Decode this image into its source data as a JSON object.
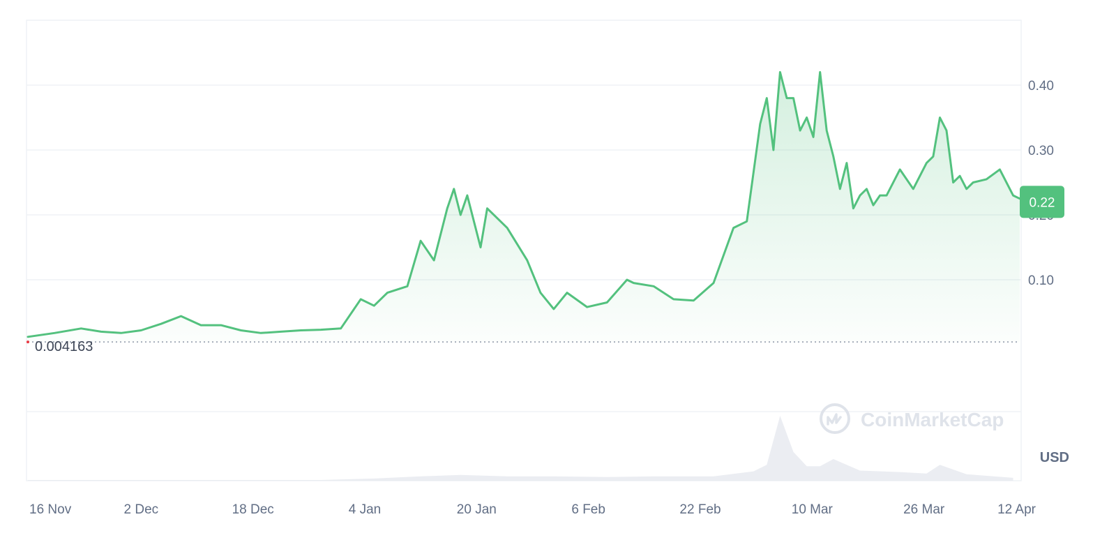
{
  "chart_data": {
    "type": "area",
    "x_label": "",
    "y_label": "",
    "unit": "USD",
    "watermark": "CoinMarketCap",
    "x_ticks": [
      "16 Nov",
      "2 Dec",
      "18 Dec",
      "4 Jan",
      "20 Jan",
      "6 Feb",
      "22 Feb",
      "10 Mar",
      "26 Mar",
      "12 Apr"
    ],
    "y_ticks": [
      "0.10",
      "0.20",
      "0.30",
      "0.40"
    ],
    "y_range": [
      -0.1,
      0.5
    ],
    "baseline_value": 0.004163,
    "baseline_label": "0.004163",
    "current_value": 0.22,
    "current_label": "0.22",
    "grid": true,
    "line_color": "#53c17e",
    "badge_color": "#53c17e",
    "series": [
      {
        "x": [
          "2023-11-16",
          "2023-11-20",
          "2023-11-24",
          "2023-11-27",
          "2023-11-30",
          "2023-12-03",
          "2023-12-06",
          "2023-12-09",
          "2023-12-12",
          "2023-12-15",
          "2023-12-18",
          "2023-12-21",
          "2023-12-24",
          "2023-12-27",
          "2023-12-30",
          "2024-01-02",
          "2024-01-05",
          "2024-01-07",
          "2024-01-09",
          "2024-01-12",
          "2024-01-14",
          "2024-01-16",
          "2024-01-18",
          "2024-01-19",
          "2024-01-20",
          "2024-01-21",
          "2024-01-23",
          "2024-01-24",
          "2024-01-27",
          "2024-01-30",
          "2024-02-01",
          "2024-02-03",
          "2024-02-05",
          "2024-02-08",
          "2024-02-11",
          "2024-02-14",
          "2024-02-15",
          "2024-02-18",
          "2024-02-21",
          "2024-02-24",
          "2024-02-27",
          "2024-03-01",
          "2024-03-03",
          "2024-03-05",
          "2024-03-06",
          "2024-03-07",
          "2024-03-08",
          "2024-03-09",
          "2024-03-10",
          "2024-03-11",
          "2024-03-12",
          "2024-03-13",
          "2024-03-14",
          "2024-03-15",
          "2024-03-16",
          "2024-03-17",
          "2024-03-18",
          "2024-03-19",
          "2024-03-20",
          "2024-03-21",
          "2024-03-22",
          "2024-03-23",
          "2024-03-24",
          "2024-03-26",
          "2024-03-28",
          "2024-03-30",
          "2024-03-31",
          "2024-04-01",
          "2024-04-02",
          "2024-04-03",
          "2024-04-04",
          "2024-04-05",
          "2024-04-06",
          "2024-04-08",
          "2024-04-10",
          "2024-04-12",
          "2024-04-13"
        ],
        "y": [
          0.012,
          0.018,
          0.025,
          0.02,
          0.018,
          0.022,
          0.032,
          0.044,
          0.03,
          0.03,
          0.022,
          0.018,
          0.02,
          0.022,
          0.023,
          0.025,
          0.07,
          0.06,
          0.08,
          0.09,
          0.16,
          0.13,
          0.21,
          0.24,
          0.2,
          0.23,
          0.15,
          0.21,
          0.18,
          0.13,
          0.08,
          0.055,
          0.08,
          0.058,
          0.065,
          0.1,
          0.095,
          0.09,
          0.07,
          0.068,
          0.095,
          0.18,
          0.19,
          0.34,
          0.38,
          0.3,
          0.42,
          0.38,
          0.38,
          0.33,
          0.35,
          0.32,
          0.42,
          0.33,
          0.29,
          0.24,
          0.28,
          0.21,
          0.23,
          0.24,
          0.215,
          0.23,
          0.23,
          0.27,
          0.24,
          0.28,
          0.29,
          0.35,
          0.33,
          0.25,
          0.26,
          0.24,
          0.25,
          0.255,
          0.27,
          0.23,
          0.225
        ]
      }
    ],
    "volume": {
      "x": [
        "2023-11-16",
        "2023-11-24",
        "2023-12-03",
        "2023-12-12",
        "2023-12-21",
        "2023-12-30",
        "2024-01-07",
        "2024-01-14",
        "2024-01-20",
        "2024-01-27",
        "2024-02-03",
        "2024-02-11",
        "2024-02-18",
        "2024-02-27",
        "2024-03-04",
        "2024-03-06",
        "2024-03-08",
        "2024-03-10",
        "2024-03-12",
        "2024-03-14",
        "2024-03-16",
        "2024-03-20",
        "2024-03-26",
        "2024-03-30",
        "2024-04-01",
        "2024-04-05",
        "2024-04-12"
      ],
      "y": [
        1,
        1,
        1,
        1,
        1,
        1,
        3,
        6,
        8,
        6,
        6,
        5,
        6,
        6,
        13,
        22,
        90,
        40,
        20,
        20,
        30,
        14,
        12,
        10,
        22,
        9,
        4
      ]
    }
  }
}
